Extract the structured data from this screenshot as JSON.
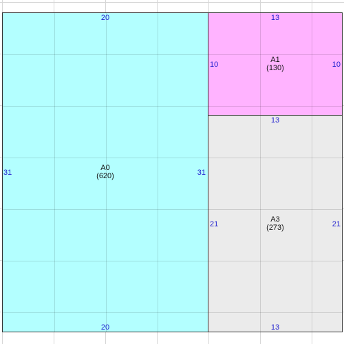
{
  "colors": {
    "background": "#ffffff",
    "grid": "#d6d6d6",
    "border": "#333333",
    "dimension_text": "#1f1fcf",
    "label_text": "#111111"
  },
  "regions": [
    {
      "name": "A0",
      "value": "(620)",
      "color": "#b3ffff",
      "dims": {
        "top": "20",
        "bottom": "20",
        "left": "31",
        "right": "31"
      }
    },
    {
      "name": "A1",
      "value": "(130)",
      "color": "#ffb3ff",
      "dims": {
        "top": "13",
        "bottom": "",
        "left": "10",
        "right": "10"
      }
    },
    {
      "name": "A3",
      "value": "(273)",
      "color": "#ebebeb",
      "dims": {
        "top": "13",
        "bottom": "13",
        "left": "21",
        "right": "21"
      }
    }
  ]
}
